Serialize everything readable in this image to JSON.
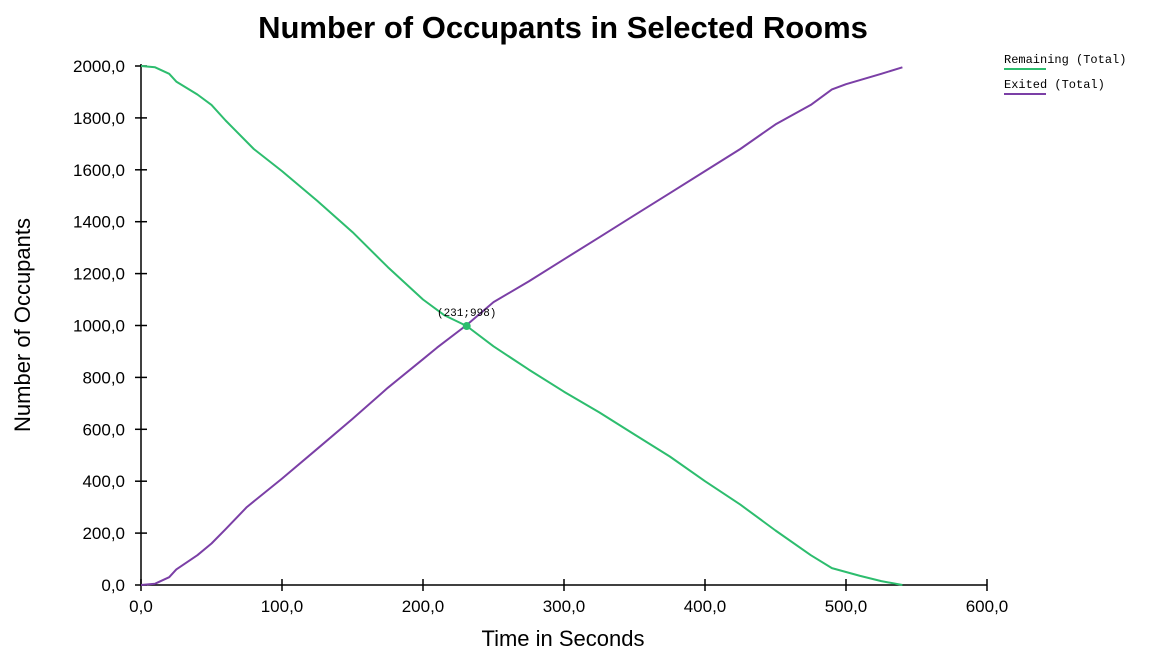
{
  "chart_data": {
    "type": "line",
    "title": "Number of Occupants in Selected Rooms",
    "xlabel": "Time in Seconds",
    "ylabel": "Number of Occupants",
    "xlim": [
      0,
      600
    ],
    "ylim": [
      0,
      2000
    ],
    "x_ticks": [
      0,
      100,
      200,
      300,
      400,
      500,
      600
    ],
    "y_ticks": [
      0,
      200,
      400,
      600,
      800,
      1000,
      1200,
      1400,
      1600,
      1800,
      2000
    ],
    "x_tick_labels": [
      "0,0",
      "100,0",
      "200,0",
      "300,0",
      "400,0",
      "500,0",
      "600,0"
    ],
    "y_tick_labels": [
      "0,0",
      "200,0",
      "400,0",
      "600,0",
      "800,0",
      "1000,0",
      "1200,0",
      "1400,0",
      "1600,0",
      "1800,0",
      "2000,0"
    ],
    "grid": false,
    "legend_position": "top-right",
    "series": [
      {
        "name": "Remaining (Total)",
        "color": "#2dbd6e",
        "points": [
          [
            0,
            2000
          ],
          [
            10,
            1995
          ],
          [
            20,
            1970
          ],
          [
            25,
            1940
          ],
          [
            40,
            1890
          ],
          [
            50,
            1850
          ],
          [
            60,
            1790
          ],
          [
            80,
            1680
          ],
          [
            100,
            1595
          ],
          [
            125,
            1480
          ],
          [
            150,
            1360
          ],
          [
            175,
            1225
          ],
          [
            200,
            1100
          ],
          [
            215,
            1040
          ],
          [
            231,
            998
          ],
          [
            250,
            920
          ],
          [
            275,
            830
          ],
          [
            300,
            745
          ],
          [
            325,
            665
          ],
          [
            350,
            580
          ],
          [
            375,
            495
          ],
          [
            400,
            400
          ],
          [
            425,
            310
          ],
          [
            450,
            210
          ],
          [
            475,
            115
          ],
          [
            490,
            65
          ],
          [
            510,
            35
          ],
          [
            525,
            15
          ],
          [
            540,
            0
          ]
        ]
      },
      {
        "name": "Exited (Total)",
        "color": "#7b3fa6",
        "points": [
          [
            0,
            0
          ],
          [
            10,
            5
          ],
          [
            20,
            30
          ],
          [
            25,
            60
          ],
          [
            40,
            115
          ],
          [
            50,
            160
          ],
          [
            60,
            215
          ],
          [
            75,
            300
          ],
          [
            100,
            410
          ],
          [
            125,
            525
          ],
          [
            150,
            640
          ],
          [
            175,
            760
          ],
          [
            200,
            870
          ],
          [
            210,
            915
          ],
          [
            231,
            1002
          ],
          [
            250,
            1090
          ],
          [
            275,
            1170
          ],
          [
            300,
            1255
          ],
          [
            325,
            1340
          ],
          [
            350,
            1425
          ],
          [
            375,
            1510
          ],
          [
            400,
            1595
          ],
          [
            425,
            1680
          ],
          [
            450,
            1775
          ],
          [
            475,
            1850
          ],
          [
            490,
            1910
          ],
          [
            500,
            1930
          ],
          [
            525,
            1970
          ],
          [
            540,
            1995
          ]
        ]
      }
    ],
    "annotations": [
      {
        "x": 231,
        "y": 998,
        "text": "(231;998)",
        "color": "#2dbd6e"
      }
    ]
  }
}
